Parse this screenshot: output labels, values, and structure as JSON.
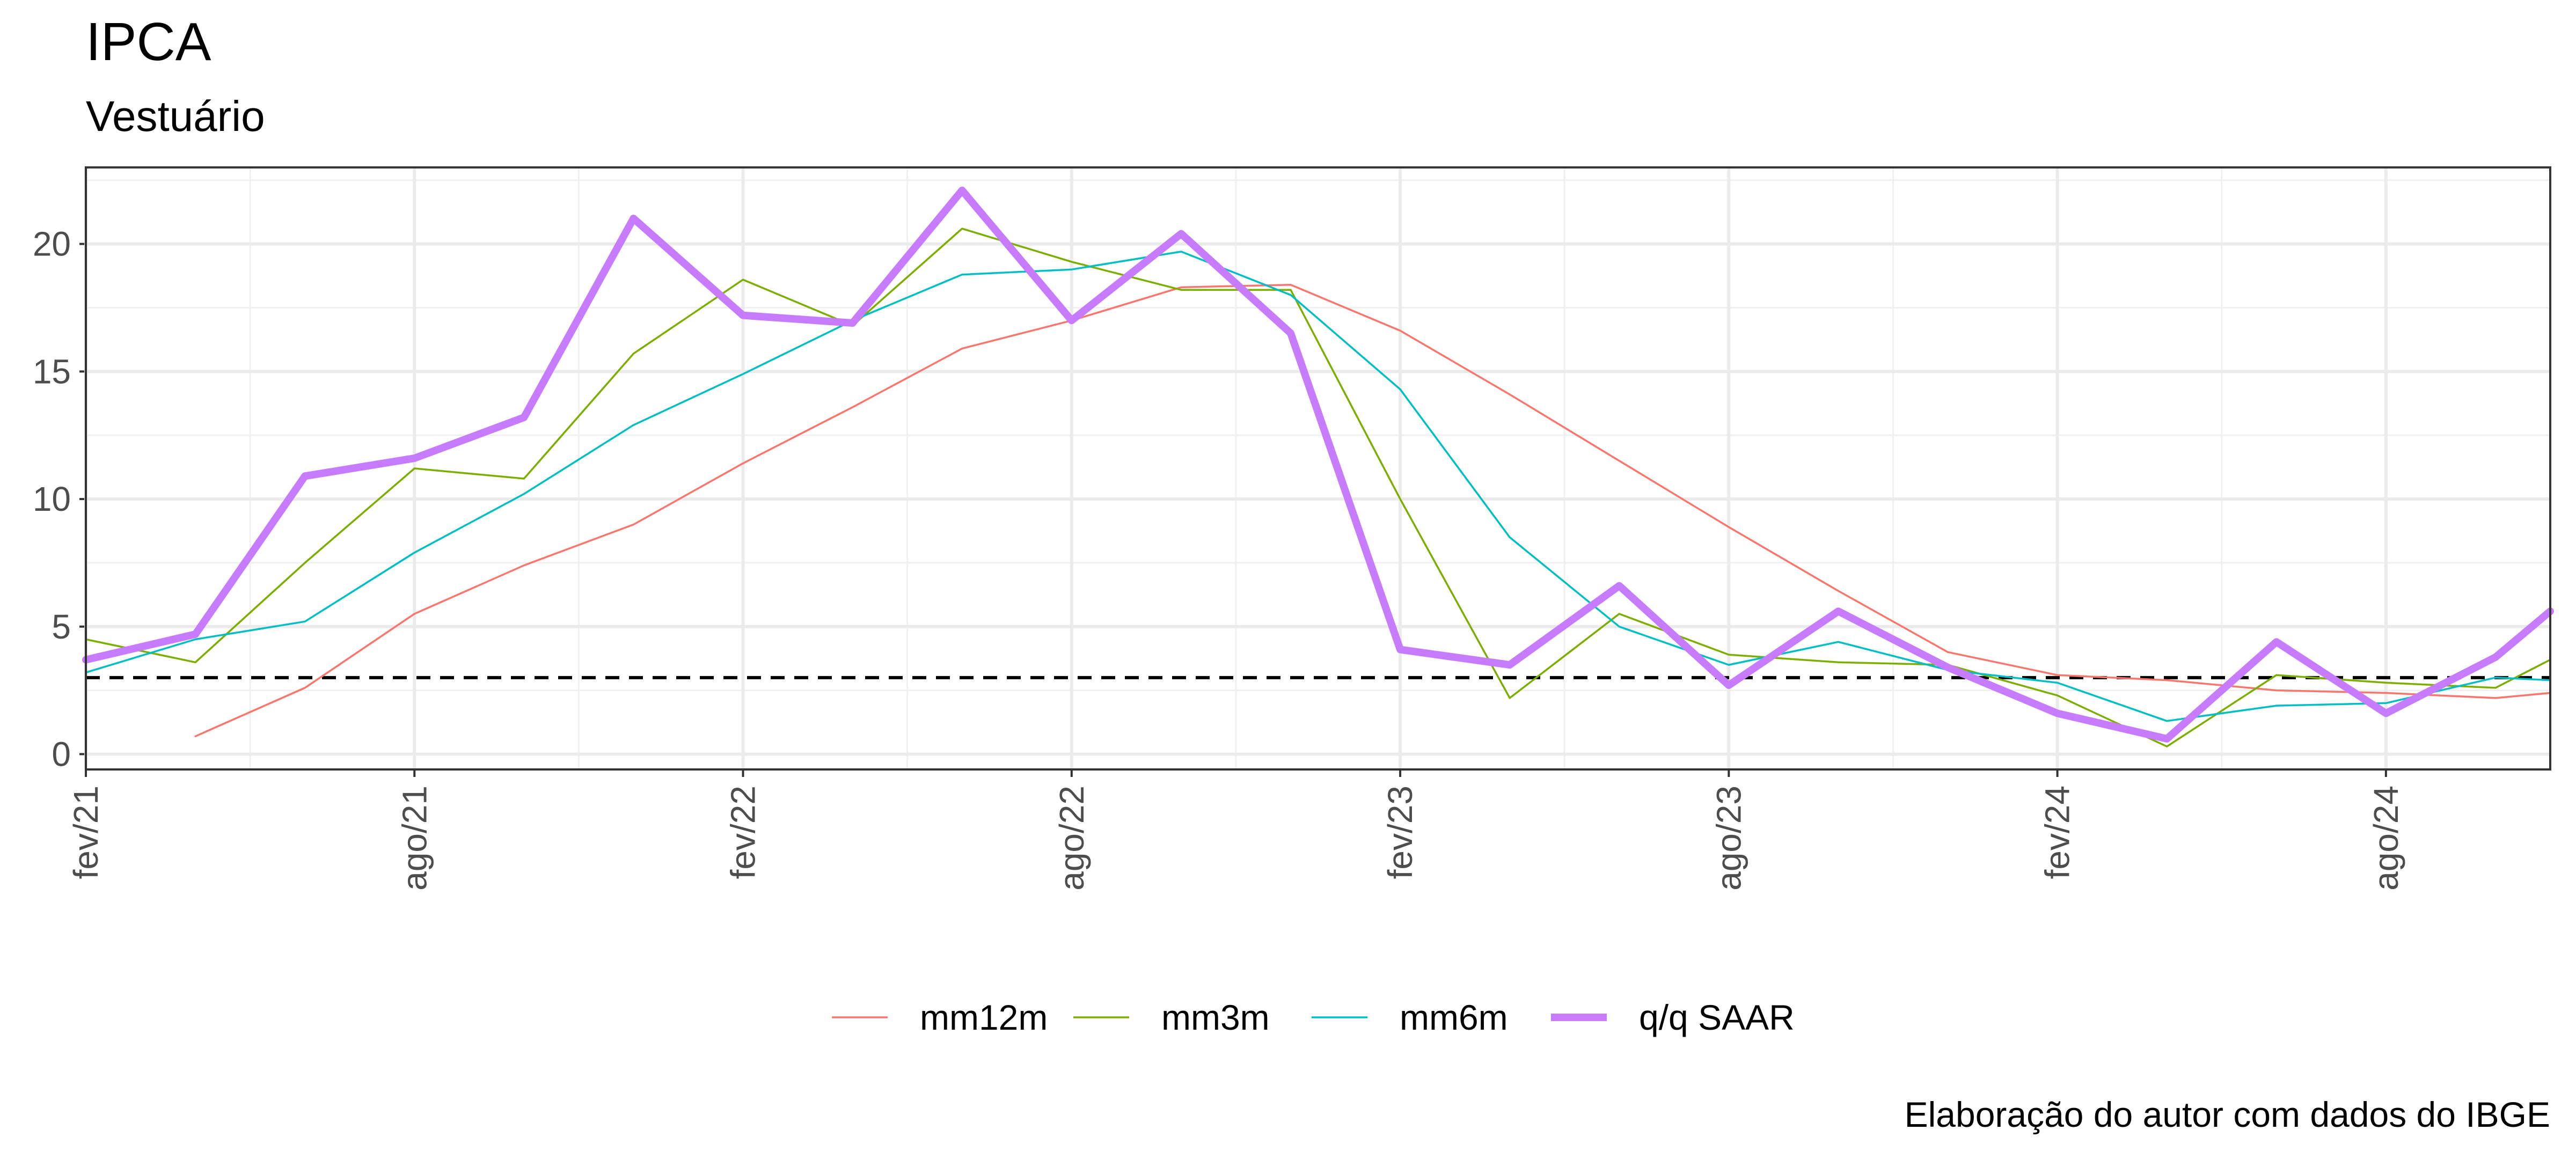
{
  "chart_data": {
    "type": "line",
    "title": "IPCA",
    "subtitle": "Vestuário",
    "caption": "Elaboração do autor com dados do IBGE",
    "xlabel": "",
    "ylabel": "",
    "x_ticks": [
      "2021-02",
      "2021-08",
      "2022-02",
      "2022-08",
      "2023-02",
      "2023-08",
      "2024-02",
      "2024-08"
    ],
    "x_tick_labels": [
      "fev/21",
      "ago/21",
      "fev/22",
      "ago/22",
      "fev/23",
      "ago/23",
      "fev/24",
      "ago/24"
    ],
    "xlim": [
      "2021-02",
      "2024-11"
    ],
    "y_ticks": [
      0,
      5,
      10,
      15,
      20
    ],
    "ylim": [
      -0.6,
      23.0
    ],
    "grid": true,
    "legend_position": "bottom",
    "reference_line": {
      "y": 3,
      "style": "dashed",
      "color": "#000000"
    },
    "x": [
      "2021-02",
      "2021-04",
      "2021-06",
      "2021-08",
      "2021-10",
      "2021-12",
      "2022-02",
      "2022-04",
      "2022-06",
      "2022-08",
      "2022-10",
      "2022-12",
      "2023-02",
      "2023-04",
      "2023-06",
      "2023-08",
      "2023-10",
      "2023-12",
      "2024-02",
      "2024-04",
      "2024-06",
      "2024-08",
      "2024-10",
      "2024-11"
    ],
    "series": [
      {
        "name": "mm12m",
        "color": "#F8766D",
        "width": "thin",
        "values": [
          null,
          0.7,
          2.6,
          5.5,
          7.4,
          9.0,
          11.4,
          13.6,
          15.9,
          17.0,
          18.3,
          18.4,
          16.6,
          14.1,
          11.5,
          8.9,
          6.4,
          4.0,
          3.1,
          2.9,
          2.5,
          2.4,
          2.2,
          2.4
        ]
      },
      {
        "name": "mm3m",
        "color": "#7CAE00",
        "width": "thin",
        "values": [
          4.5,
          3.6,
          7.5,
          11.2,
          10.8,
          15.7,
          18.6,
          16.8,
          20.6,
          19.3,
          18.2,
          18.2,
          10.0,
          2.2,
          5.5,
          3.9,
          3.6,
          3.5,
          2.3,
          0.3,
          3.1,
          2.8,
          2.6,
          3.7
        ]
      },
      {
        "name": "mm6m",
        "color": "#00BFC4",
        "width": "thin",
        "values": [
          3.2,
          4.5,
          5.2,
          7.9,
          10.2,
          12.9,
          14.9,
          17.0,
          18.8,
          19.0,
          19.7,
          18.0,
          14.3,
          8.5,
          5.0,
          3.5,
          4.4,
          3.3,
          2.8,
          1.3,
          1.9,
          2.0,
          3.0,
          2.9
        ]
      },
      {
        "name": "q/q SAAR",
        "color": "#C77CFF",
        "width": "thick",
        "values": [
          3.7,
          4.7,
          10.9,
          11.6,
          13.2,
          21.0,
          17.2,
          16.9,
          22.1,
          17.0,
          20.4,
          16.5,
          4.1,
          3.5,
          6.6,
          2.7,
          5.6,
          3.4,
          1.6,
          0.6,
          4.4,
          1.6,
          3.8,
          5.6
        ]
      }
    ]
  }
}
